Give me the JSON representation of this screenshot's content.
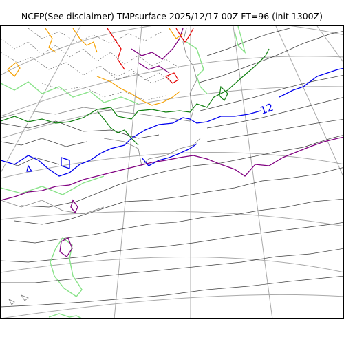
{
  "title": "NCEP(See disclaimer) TMPsurface 2025/12/17 00Z FT=96 (init 1300Z)",
  "contour_labels": [
    "12"
  ],
  "colors": {
    "frame": "#000000",
    "graticule": "#a9a9a9",
    "coastline": "#808080",
    "contour_neg": "#606060",
    "contour_dark": "#3c3c3c",
    "contour_light_green": "#88e288",
    "contour_green": "#0f7f0f",
    "contour_blue": "#0000ee",
    "contour_purple": "#800080",
    "contour_orange": "#f5a000",
    "contour_red": "#e60000"
  }
}
